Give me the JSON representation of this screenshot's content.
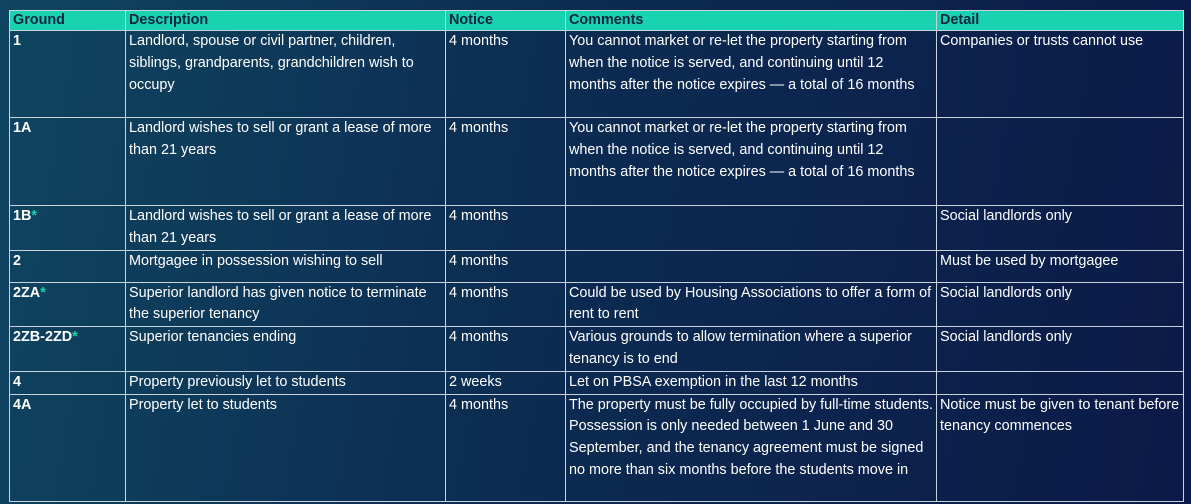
{
  "table": {
    "headers": [
      "Ground",
      "Description",
      "Notice",
      "Comments",
      "Detail"
    ],
    "rows": [
      {
        "ground": "1",
        "description": "Landlord, spouse or civil partner, children, siblings, grandparents, grandchildren wish to occupy",
        "notice": "4 months",
        "comments": "You cannot market or re-let the property starting from when the notice is served, and continuing until 12 months after the notice expires — a total of 16 months",
        "detail": "Companies or trusts cannot use"
      },
      {
        "ground": "1A",
        "description": "Landlord wishes to sell or grant a lease of more than 21 years",
        "notice": "4 months",
        "comments": "You cannot market or re-let the property starting from when the notice is served, and continuing until 12 months after the notice expires — a total of 16 months"
      },
      {
        "ground": "1B",
        "marker": "*",
        "description": "Landlord wishes to sell or grant a lease of more than 21 years",
        "notice": "4 months",
        "detail": "Social landlords only"
      },
      {
        "ground": "2",
        "description": "Mortgagee in possession wishing to sell",
        "notice": "4 months",
        "detail": "Must be used by mortgagee"
      },
      {
        "ground": "2ZA",
        "marker": "*",
        "description": "Superior landlord has given notice to terminate the superior tenancy",
        "notice": "4 months",
        "comments": "Could be used by Housing Associations to offer a form of rent to rent",
        "detail": "Social landlords only"
      },
      {
        "ground": "2ZB-2ZD",
        "marker": "*",
        "description": "Superior tenancies ending",
        "notice": "4 months",
        "comments": "Various grounds to allow termination where a superior tenancy is to end",
        "detail": "Social landlords only"
      },
      {
        "ground": "4",
        "description": "Property previously let to students",
        "notice": "2 weeks",
        "comments": "Let on PBSA exemption in the last 12 months"
      },
      {
        "ground": "4A",
        "description": "Property let to students",
        "notice": "4 months",
        "comments": "The property must be fully occupied by full-time students. Possession is only needed between 1 June and 30 September, and the tenancy agreement must be signed no more than six months before the students move in",
        "detail": "Notice must be given to tenant before tenancy commences"
      }
    ]
  }
}
